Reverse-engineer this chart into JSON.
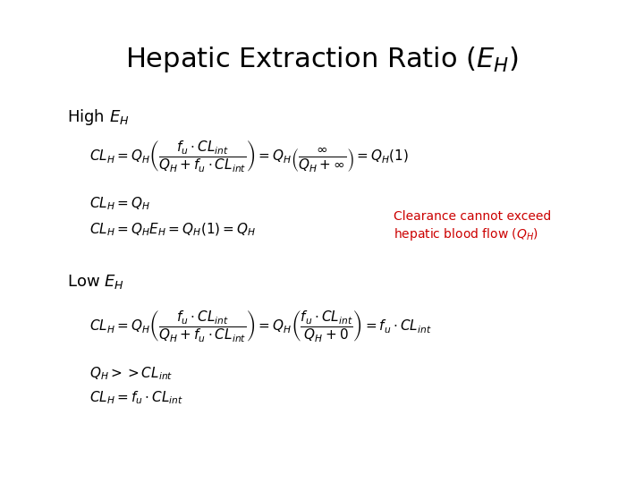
{
  "title": "Hepatic Extraction Ratio ($E_H$)",
  "title_fontsize": 22,
  "title_fontweight": "normal",
  "bg_color": "#ffffff",
  "high_label": "High $E_H$",
  "low_label": "Low $E_H$",
  "label_fontsize": 13,
  "high_eq1": "$CL_H = Q_H\\left(\\dfrac{f_u \\cdot CL_{int}}{Q_H + f_u \\cdot CL_{int}}\\right) = Q_H\\left(\\dfrac{\\infty}{Q_H + \\infty}\\right) = Q_H(1)$",
  "high_eq2": "$CL_H = Q_H$",
  "high_eq3": "$CL_H = Q_H E_H = Q_H(1) = Q_H$",
  "annotation_line1": "Clearance cannot exceed",
  "annotation_line2": "hepatic blood flow ($Q_H$)",
  "annotation_color": "#cc0000",
  "annotation_fontsize": 10,
  "low_eq1": "$CL_H = Q_H\\left(\\dfrac{f_u \\cdot CL_{int}}{Q_H + f_u \\cdot CL_{int}}\\right) = Q_H\\left(\\dfrac{f_u \\cdot CL_{int}}{Q_H + 0}\\right) = f_u \\cdot CL_{int}$",
  "low_eq2": "$Q_H >> CL_{int}$",
  "low_eq3": "$CL_H = f_u \\cdot CL_{int}$",
  "eq_fontsize": 11,
  "figwidth": 7.2,
  "figheight": 5.4,
  "dpi": 100
}
